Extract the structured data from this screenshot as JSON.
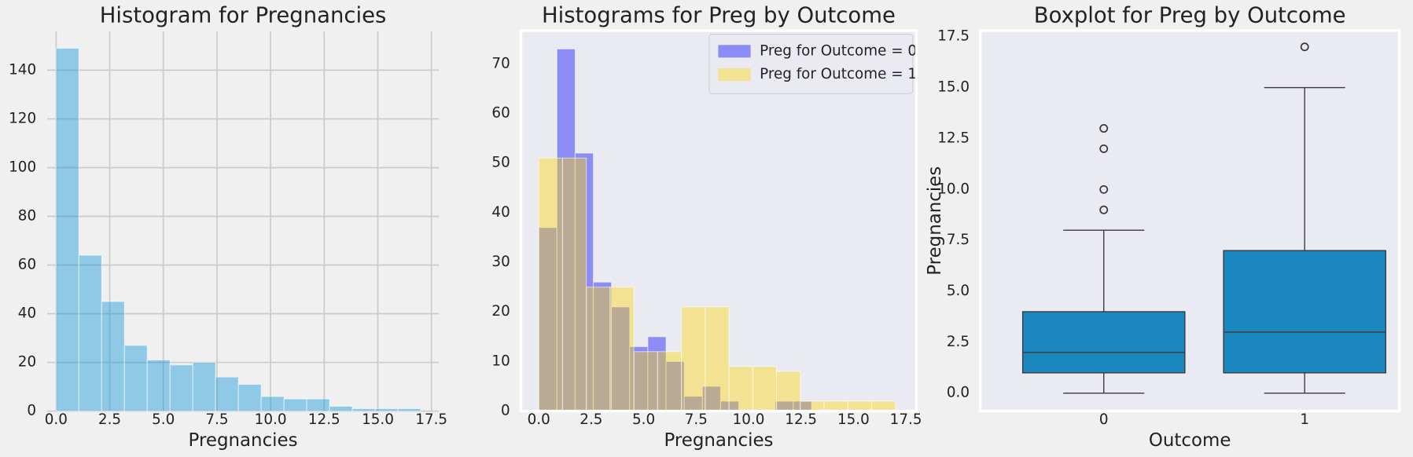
{
  "chart_data": [
    {
      "type": "histogram",
      "title": "Histogram for Pregnancies",
      "xlabel": "Pregnancies",
      "bins": [
        0,
        1.0625,
        2.125,
        3.1875,
        4.25,
        5.3125,
        6.375,
        7.4375,
        8.5,
        9.5625,
        10.625,
        11.6875,
        12.75,
        13.8125,
        14.875,
        15.9375,
        17
      ],
      "series": [
        {
          "color": "#008fd5",
          "alpha": 0.4,
          "values": [
            149,
            64,
            45,
            27,
            21,
            19,
            20,
            14,
            11,
            6,
            5,
            5,
            2,
            1,
            1,
            1
          ]
        }
      ],
      "xlim": [
        -0.42,
        17.85
      ],
      "ylim": [
        0,
        155.9
      ],
      "xticks": [
        {
          "value": 0,
          "label": "0.0"
        },
        {
          "value": 2.5,
          "label": "2.5"
        },
        {
          "value": 5,
          "label": "5.0"
        },
        {
          "value": 7.5,
          "label": "7.5"
        },
        {
          "value": 10,
          "label": "10.0"
        },
        {
          "value": 12.5,
          "label": "12.5"
        },
        {
          "value": 15,
          "label": "15.0"
        },
        {
          "value": 17.5,
          "label": "17.5"
        }
      ],
      "yticks": [
        0,
        20,
        40,
        60,
        80,
        100,
        120,
        140
      ],
      "grid": true
    },
    {
      "type": "histogram",
      "title": "Histograms for Preg by Outcome",
      "xlabel": "Pregnancies",
      "series": [
        {
          "name": "Preg for Outcome = 0",
          "color": "#0000ff",
          "alpha": 0.4,
          "bins": [
            0,
            0.8667,
            1.7333,
            2.6,
            3.4667,
            4.3333,
            5.2,
            6.0667,
            6.9333,
            7.8,
            8.6667,
            9.5333,
            10.4,
            11.2667,
            12.1333,
            13
          ],
          "values": [
            37,
            73,
            52,
            26,
            21,
            13,
            15,
            10,
            3,
            5,
            2,
            0,
            0,
            2,
            2
          ]
        },
        {
          "name": "Preg for Outcome = 1",
          "color": "#ffd700",
          "alpha": 0.4,
          "bins": [
            0,
            1.1333,
            2.2667,
            3.4,
            4.5333,
            5.6667,
            6.8,
            7.9333,
            9.0667,
            10.2,
            11.3333,
            12.4667,
            13.6,
            14.7333,
            15.8667,
            17
          ],
          "values": [
            51,
            51,
            25,
            25,
            12,
            12,
            21,
            21,
            9,
            9,
            8,
            2,
            2,
            2,
            2
          ]
        }
      ],
      "xlim": [
        -0.85,
        18.0
      ],
      "ylim": [
        0,
        76.7
      ],
      "xticks": [
        {
          "value": 0,
          "label": "0.0"
        },
        {
          "value": 2.5,
          "label": "2.5"
        },
        {
          "value": 5,
          "label": "5.0"
        },
        {
          "value": 7.5,
          "label": "7.5"
        },
        {
          "value": 10,
          "label": "10.0"
        },
        {
          "value": 12.5,
          "label": "12.5"
        },
        {
          "value": 15,
          "label": "15.0"
        },
        {
          "value": 17.5,
          "label": "17.5"
        }
      ],
      "yticks": [
        0,
        10,
        20,
        30,
        40,
        50,
        60,
        70
      ],
      "grid": false,
      "legend": "upper right"
    },
    {
      "type": "box",
      "title": "Boxplot for Preg by Outcome",
      "xlabel": "Outcome",
      "ylabel": "Pregnancies",
      "categories": [
        "0",
        "1"
      ],
      "color": "#1a88bf",
      "boxes": [
        {
          "min": 0,
          "q1": 1,
          "median": 2,
          "q3": 4,
          "max": 8,
          "outliers": [
            9,
            10,
            12,
            13
          ]
        },
        {
          "min": 0,
          "q1": 1,
          "median": 3,
          "q3": 7,
          "max": 15,
          "outliers": [
            17
          ]
        }
      ],
      "ylim": [
        -0.88,
        17.8
      ],
      "yticks": [
        {
          "value": 0,
          "label": "0.0"
        },
        {
          "value": 2.5,
          "label": "2.5"
        },
        {
          "value": 5,
          "label": "5.0"
        },
        {
          "value": 7.5,
          "label": "7.5"
        },
        {
          "value": 10,
          "label": "10.0"
        },
        {
          "value": 12.5,
          "label": "12.5"
        },
        {
          "value": 15,
          "label": "15.0"
        },
        {
          "value": 17.5,
          "label": "17.5"
        }
      ],
      "grid": false
    }
  ]
}
